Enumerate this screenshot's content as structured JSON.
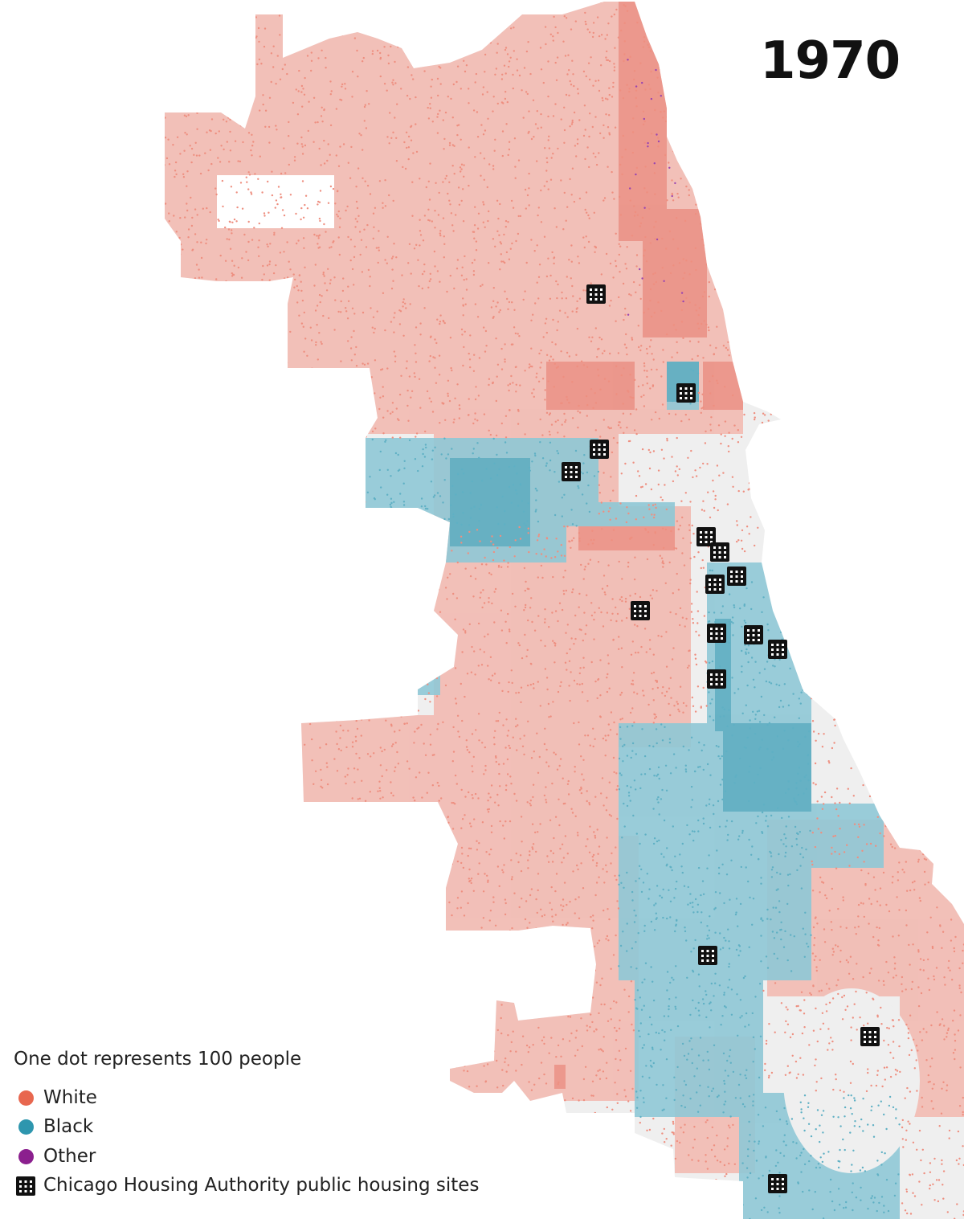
{
  "title": "1970",
  "legend": {
    "note": "One dot represents 100 people",
    "items": [
      {
        "key": "white",
        "label": "White",
        "color": "#e8674f"
      },
      {
        "key": "black",
        "label": "Black",
        "color": "#2e96ae"
      },
      {
        "key": "other",
        "label": "Other",
        "color": "#8b1f8e"
      }
    ],
    "housing_label": "Chicago Housing Authority public housing sites",
    "housing_icon": "building-icon"
  },
  "colors": {
    "white_dot": "#ee8f80",
    "black_dot": "#5fb0c4",
    "other_dot": "#9a45b0",
    "land": "#efefef"
  }
}
